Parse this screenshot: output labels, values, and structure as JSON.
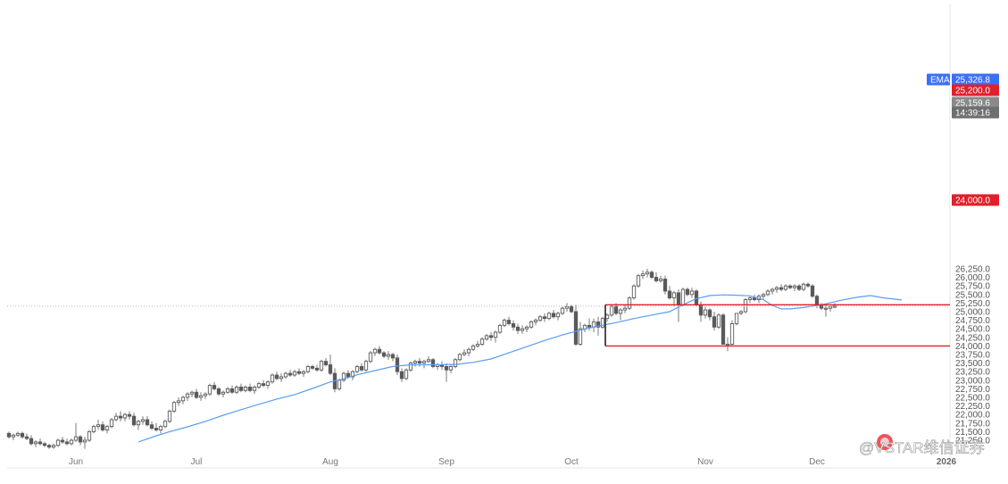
{
  "chart_data": {
    "type": "candlestick",
    "title": "",
    "xlabel": "",
    "ylabel": "",
    "ylim": [
      21200,
      26300
    ],
    "y_ticks": [
      21250,
      21500,
      21750,
      22000,
      22250,
      22500,
      22750,
      23000,
      23250,
      23500,
      23750,
      24000,
      24250,
      24500,
      24750,
      25000,
      25250,
      25500,
      25750,
      26000,
      26250
    ],
    "y_tick_labels": [
      "21,250.0",
      "21,500.0",
      "21,750.0",
      "22,000.0",
      "22,250.0",
      "22,500.0",
      "22,750.0",
      "23,000.0",
      "23,250.0",
      "23,500.0",
      "23,750.0",
      "24,000.0",
      "24,250.0",
      "24,500.0",
      "24,750.0",
      "25,000.0",
      "25,250.0",
      "25,500.0",
      "25,750.0",
      "26,000.0",
      "26,250.0"
    ],
    "x_ticks": [
      {
        "label": "Jun",
        "index": 15,
        "bold": false
      },
      {
        "label": "Jul",
        "index": 42,
        "bold": false
      },
      {
        "label": "Aug",
        "index": 72,
        "bold": false
      },
      {
        "label": "Sep",
        "index": 98,
        "bold": false
      },
      {
        "label": "Oct",
        "index": 126,
        "bold": false
      },
      {
        "label": "Nov",
        "index": 156,
        "bold": false
      },
      {
        "label": "Dec",
        "index": 181,
        "bold": false
      },
      {
        "label": "2026",
        "index": 210,
        "bold": true
      }
    ],
    "ema_label": "EMA",
    "ema_value": "25,326.8",
    "last_price": "25,159.6",
    "countdown": "14:39:16",
    "current_price": 25160,
    "levels": [
      {
        "value": 25200,
        "label": "25,200.0",
        "start_index": 134,
        "color": "#e0202c"
      },
      {
        "value": 24000,
        "label": "24,000.0",
        "start_index": 134,
        "color": "#e0202c"
      }
    ],
    "candles": [
      [
        21450,
        21500,
        21300,
        21350
      ],
      [
        21350,
        21450,
        21250,
        21400
      ],
      [
        21400,
        21500,
        21350,
        21450
      ],
      [
        21450,
        21500,
        21300,
        21350
      ],
      [
        21350,
        21450,
        21250,
        21300
      ],
      [
        21300,
        21400,
        21100,
        21150
      ],
      [
        21150,
        21250,
        21050,
        21200
      ],
      [
        21200,
        21300,
        21100,
        21150
      ],
      [
        21150,
        21200,
        21050,
        21100
      ],
      [
        21100,
        21150,
        21000,
        21050
      ],
      [
        21050,
        21150,
        21000,
        21100
      ],
      [
        21100,
        21300,
        21050,
        21250
      ],
      [
        21250,
        21350,
        21150,
        21200
      ],
      [
        21200,
        21300,
        21100,
        21150
      ],
      [
        21150,
        21300,
        21100,
        21250
      ],
      [
        21250,
        21750,
        21200,
        21350
      ],
      [
        21350,
        21400,
        21100,
        21200
      ],
      [
        21200,
        21350,
        21000,
        21250
      ],
      [
        21250,
        21550,
        21200,
        21500
      ],
      [
        21500,
        21700,
        21450,
        21650
      ],
      [
        21650,
        21850,
        21550,
        21700
      ],
      [
        21700,
        21800,
        21500,
        21550
      ],
      [
        21550,
        21700,
        21450,
        21650
      ],
      [
        21650,
        21900,
        21600,
        21850
      ],
      [
        21850,
        22050,
        21800,
        21950
      ],
      [
        21950,
        22100,
        21800,
        21900
      ],
      [
        21900,
        22050,
        21800,
        22000
      ],
      [
        22000,
        22100,
        21850,
        21950
      ],
      [
        21950,
        22050,
        21650,
        21700
      ],
      [
        21700,
        21850,
        21550,
        21800
      ],
      [
        21800,
        21950,
        21700,
        21850
      ],
      [
        21850,
        21950,
        21650,
        21700
      ],
      [
        21700,
        21800,
        21550,
        21600
      ],
      [
        21600,
        21750,
        21500,
        21550
      ],
      [
        21550,
        21700,
        21450,
        21650
      ],
      [
        21650,
        21850,
        21600,
        21800
      ],
      [
        21800,
        22150,
        21750,
        22100
      ],
      [
        22100,
        22400,
        22050,
        22350
      ],
      [
        22350,
        22500,
        22250,
        22400
      ],
      [
        22400,
        22550,
        22300,
        22500
      ],
      [
        22500,
        22650,
        22400,
        22600
      ],
      [
        22600,
        22700,
        22500,
        22650
      ],
      [
        22650,
        22750,
        22450,
        22500
      ],
      [
        22500,
        22650,
        22400,
        22550
      ],
      [
        22550,
        22650,
        22450,
        22600
      ],
      [
        22600,
        22900,
        22550,
        22850
      ],
      [
        22850,
        22950,
        22700,
        22750
      ],
      [
        22750,
        22800,
        22550,
        22600
      ],
      [
        22600,
        22700,
        22500,
        22650
      ],
      [
        22650,
        22800,
        22600,
        22750
      ],
      [
        22750,
        22850,
        22600,
        22650
      ],
      [
        22650,
        22850,
        22600,
        22800
      ],
      [
        22800,
        22900,
        22650,
        22700
      ],
      [
        22700,
        22850,
        22650,
        22800
      ],
      [
        22800,
        22900,
        22650,
        22700
      ],
      [
        22700,
        22850,
        22600,
        22800
      ],
      [
        22800,
        22950,
        22750,
        22900
      ],
      [
        22900,
        23000,
        22800,
        22850
      ],
      [
        22850,
        23000,
        22750,
        22950
      ],
      [
        22950,
        23200,
        22900,
        23150
      ],
      [
        23150,
        23250,
        23000,
        23050
      ],
      [
        23050,
        23200,
        22950,
        23100
      ],
      [
        23100,
        23250,
        23050,
        23200
      ],
      [
        23200,
        23300,
        23100,
        23150
      ],
      [
        23150,
        23300,
        23100,
        23250
      ],
      [
        23250,
        23350,
        23150,
        23200
      ],
      [
        23200,
        23300,
        23100,
        23250
      ],
      [
        23250,
        23450,
        23200,
        23400
      ],
      [
        23400,
        23450,
        23300,
        23350
      ],
      [
        23350,
        23450,
        23250,
        23300
      ],
      [
        23300,
        23600,
        23250,
        23550
      ],
      [
        23550,
        23650,
        23400,
        23450
      ],
      [
        23450,
        23750,
        23150,
        23200
      ],
      [
        23200,
        23350,
        22650,
        22750
      ],
      [
        22750,
        23050,
        22700,
        23000
      ],
      [
        23000,
        23250,
        22950,
        23200
      ],
      [
        23200,
        23300,
        23050,
        23100
      ],
      [
        23100,
        23300,
        23000,
        23250
      ],
      [
        23250,
        23450,
        23200,
        23400
      ],
      [
        23400,
        23500,
        23250,
        23300
      ],
      [
        23300,
        23600,
        23250,
        23550
      ],
      [
        23550,
        23850,
        23500,
        23800
      ],
      [
        23800,
        23950,
        23700,
        23900
      ],
      [
        23900,
        24000,
        23750,
        23800
      ],
      [
        23800,
        23850,
        23650,
        23700
      ],
      [
        23700,
        23850,
        23600,
        23750
      ],
      [
        23750,
        23800,
        23550,
        23650
      ],
      [
        23650,
        23750,
        23150,
        23250
      ],
      [
        23250,
        23350,
        22950,
        23050
      ],
      [
        23050,
        23350,
        23000,
        23300
      ],
      [
        23300,
        23550,
        23250,
        23500
      ],
      [
        23500,
        23600,
        23400,
        23550
      ],
      [
        23550,
        23650,
        23400,
        23500
      ],
      [
        23500,
        23600,
        23350,
        23550
      ],
      [
        23550,
        23700,
        23500,
        23600
      ],
      [
        23600,
        23650,
        23350,
        23400
      ],
      [
        23400,
        23500,
        23300,
        23450
      ],
      [
        23450,
        23550,
        23300,
        23400
      ],
      [
        23400,
        23500,
        22950,
        23300
      ],
      [
        23300,
        23450,
        23200,
        23400
      ],
      [
        23400,
        23650,
        23350,
        23600
      ],
      [
        23600,
        23800,
        23550,
        23750
      ],
      [
        23750,
        23900,
        23700,
        23800
      ],
      [
        23800,
        23950,
        23700,
        23900
      ],
      [
        23900,
        24050,
        23850,
        24000
      ],
      [
        24000,
        24150,
        23950,
        24050
      ],
      [
        24050,
        24250,
        24000,
        24200
      ],
      [
        24200,
        24350,
        24150,
        24300
      ],
      [
        24300,
        24400,
        24150,
        24250
      ],
      [
        24250,
        24450,
        24100,
        24400
      ],
      [
        24400,
        24650,
        24350,
        24600
      ],
      [
        24600,
        24800,
        24550,
        24750
      ],
      [
        24750,
        24850,
        24600,
        24650
      ],
      [
        24650,
        24750,
        24450,
        24550
      ],
      [
        24550,
        24650,
        24350,
        24450
      ],
      [
        24450,
        24600,
        24350,
        24500
      ],
      [
        24500,
        24600,
        24400,
        24550
      ],
      [
        24550,
        24750,
        24500,
        24700
      ],
      [
        24700,
        24800,
        24600,
        24750
      ],
      [
        24750,
        24900,
        24700,
        24850
      ],
      [
        24850,
        24950,
        24700,
        24800
      ],
      [
        24800,
        25000,
        24750,
        24950
      ],
      [
        24950,
        25050,
        24800,
        24850
      ],
      [
        24850,
        25000,
        24750,
        24950
      ],
      [
        24950,
        25150,
        24900,
        25100
      ],
      [
        25100,
        25250,
        25000,
        25150
      ],
      [
        25150,
        25200,
        24950,
        25000
      ],
      [
        25000,
        25200,
        24000,
        24050
      ],
      [
        24050,
        24700,
        24000,
        24500
      ],
      [
        24500,
        24650,
        24400,
        24600
      ],
      [
        24600,
        24800,
        24450,
        24550
      ],
      [
        24550,
        24800,
        24400,
        24700
      ],
      [
        24700,
        24850,
        24300,
        24550
      ],
      [
        24550,
        24850,
        24500,
        24800
      ],
      [
        24800,
        24950,
        24700,
        24900
      ],
      [
        24900,
        25200,
        24850,
        25150
      ],
      [
        25150,
        25250,
        24900,
        24950
      ],
      [
        24950,
        25100,
        24750,
        25050
      ],
      [
        25050,
        25200,
        24950,
        25100
      ],
      [
        25100,
        25450,
        25050,
        25400
      ],
      [
        25400,
        25800,
        25350,
        25750
      ],
      [
        25750,
        26100,
        25700,
        26050
      ],
      [
        26050,
        26200,
        25950,
        26100
      ],
      [
        26100,
        26250,
        26000,
        26150
      ],
      [
        26150,
        26200,
        25950,
        26000
      ],
      [
        26000,
        26150,
        25850,
        25900
      ],
      [
        25900,
        26050,
        25850,
        25950
      ],
      [
        25950,
        26050,
        25500,
        25600
      ],
      [
        25600,
        25750,
        25350,
        25400
      ],
      [
        25400,
        25600,
        25150,
        25550
      ],
      [
        25550,
        25650,
        24700,
        25200
      ],
      [
        25200,
        25700,
        25150,
        25650
      ],
      [
        25650,
        25700,
        25450,
        25500
      ],
      [
        25500,
        25700,
        25400,
        25600
      ],
      [
        25600,
        25650,
        25150,
        25200
      ],
      [
        25200,
        25300,
        24700,
        24900
      ],
      [
        24900,
        25150,
        24800,
        25050
      ],
      [
        25050,
        25100,
        24750,
        24850
      ],
      [
        24850,
        25000,
        24450,
        24550
      ],
      [
        24550,
        24950,
        24500,
        24900
      ],
      [
        24900,
        24950,
        24050,
        24050
      ],
      [
        24050,
        24250,
        23850,
        24050
      ],
      [
        24050,
        24750,
        24000,
        24650
      ],
      [
        24650,
        24950,
        24600,
        24950
      ],
      [
        24950,
        25050,
        24900,
        25000
      ],
      [
        25000,
        25400,
        24950,
        25350
      ],
      [
        25350,
        25450,
        25250,
        25400
      ],
      [
        25400,
        25500,
        25300,
        25350
      ],
      [
        25350,
        25500,
        25250,
        25450
      ],
      [
        25450,
        25550,
        25350,
        25500
      ],
      [
        25500,
        25650,
        25450,
        25600
      ],
      [
        25600,
        25700,
        25500,
        25650
      ],
      [
        25650,
        25750,
        25550,
        25700
      ],
      [
        25700,
        25800,
        25600,
        25650
      ],
      [
        25650,
        25800,
        25600,
        25750
      ],
      [
        25750,
        25800,
        25650,
        25700
      ],
      [
        25700,
        25800,
        25600,
        25750
      ],
      [
        25750,
        25800,
        25600,
        25650
      ],
      [
        25650,
        25850,
        25600,
        25800
      ],
      [
        25800,
        25850,
        25700,
        25750
      ],
      [
        25750,
        25800,
        25400,
        25450
      ],
      [
        25450,
        25500,
        25100,
        25200
      ],
      [
        25200,
        25250,
        25050,
        25100
      ],
      [
        25100,
        25200,
        24850,
        25100
      ],
      [
        25100,
        25150,
        25000,
        25150
      ],
      [
        25150,
        25250,
        25100,
        25160
      ]
    ],
    "ema": [
      [
        29,
        21200
      ],
      [
        33,
        21380
      ],
      [
        36,
        21500
      ],
      [
        40,
        21640
      ],
      [
        44,
        21800
      ],
      [
        48,
        21980
      ],
      [
        52,
        22140
      ],
      [
        56,
        22300
      ],
      [
        60,
        22450
      ],
      [
        64,
        22580
      ],
      [
        68,
        22760
      ],
      [
        72,
        22950
      ],
      [
        75,
        23040
      ],
      [
        78,
        23160
      ],
      [
        82,
        23280
      ],
      [
        86,
        23400
      ],
      [
        90,
        23450
      ],
      [
        95,
        23450
      ],
      [
        100,
        23460
      ],
      [
        104,
        23520
      ],
      [
        108,
        23620
      ],
      [
        112,
        23800
      ],
      [
        116,
        23980
      ],
      [
        120,
        24160
      ],
      [
        124,
        24320
      ],
      [
        128,
        24460
      ],
      [
        132,
        24580
      ],
      [
        136,
        24680
      ],
      [
        140,
        24800
      ],
      [
        144,
        24900
      ],
      [
        148,
        25000
      ],
      [
        151,
        25200
      ],
      [
        154,
        25380
      ],
      [
        157,
        25470
      ],
      [
        160,
        25490
      ],
      [
        163,
        25480
      ],
      [
        166,
        25460
      ],
      [
        169,
        25350
      ],
      [
        171,
        25180
      ],
      [
        173,
        25080
      ],
      [
        175,
        25080
      ],
      [
        178,
        25120
      ],
      [
        182,
        25200
      ],
      [
        186,
        25320
      ],
      [
        190,
        25420
      ],
      [
        193,
        25470
      ],
      [
        196,
        25400
      ],
      [
        200,
        25340
      ]
    ]
  },
  "colors": {
    "candle": "#5a5a5a",
    "wick": "#7a7a7a",
    "ema": "#5b9cf5",
    "level": "#e0202c",
    "ema_badge": "#3a6ff7",
    "price_badge": "#8a8a8a",
    "countdown_badge": "#6f6f6f",
    "grid_line": "#bbbbbb",
    "watermark_badge": "#e8434d"
  },
  "watermark": {
    "text": "@VSTAR维信证券",
    "prefix_icon": "wechat-channels-icon",
    "logo_icon": "vstar-logo-icon"
  }
}
